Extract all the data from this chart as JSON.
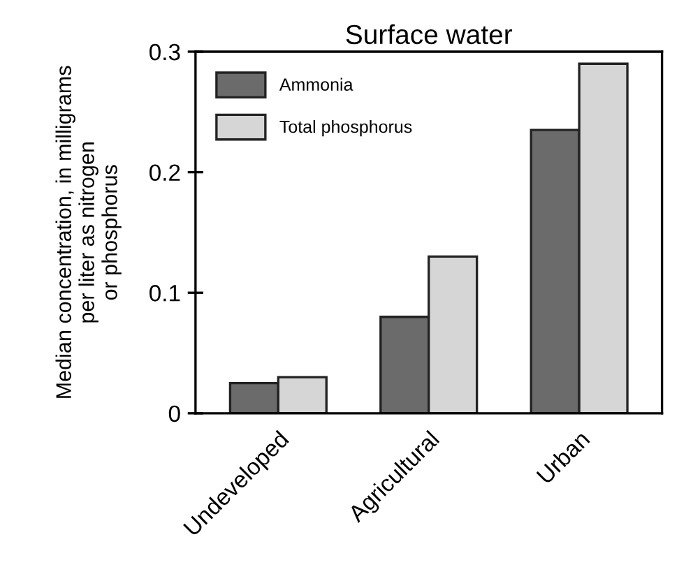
{
  "chart_data": {
    "type": "bar",
    "title": "Surface water",
    "ylabel": "Median concentration, in milligrams\nper liter as nitrogen\nor phosphorus",
    "categories": [
      "Undeveloped",
      "Agricultural",
      "Urban"
    ],
    "series": [
      {
        "name": "Ammonia",
        "color": "#6b6b6b",
        "values": [
          0.025,
          0.08,
          0.235
        ]
      },
      {
        "name": "Total phosphorus",
        "color": "#d6d6d6",
        "values": [
          0.03,
          0.13,
          0.29
        ]
      }
    ],
    "ylim": [
      0,
      0.3
    ],
    "yticks": [
      0,
      0.1,
      0.2,
      0.3
    ],
    "grid": false,
    "legend": "top left"
  }
}
